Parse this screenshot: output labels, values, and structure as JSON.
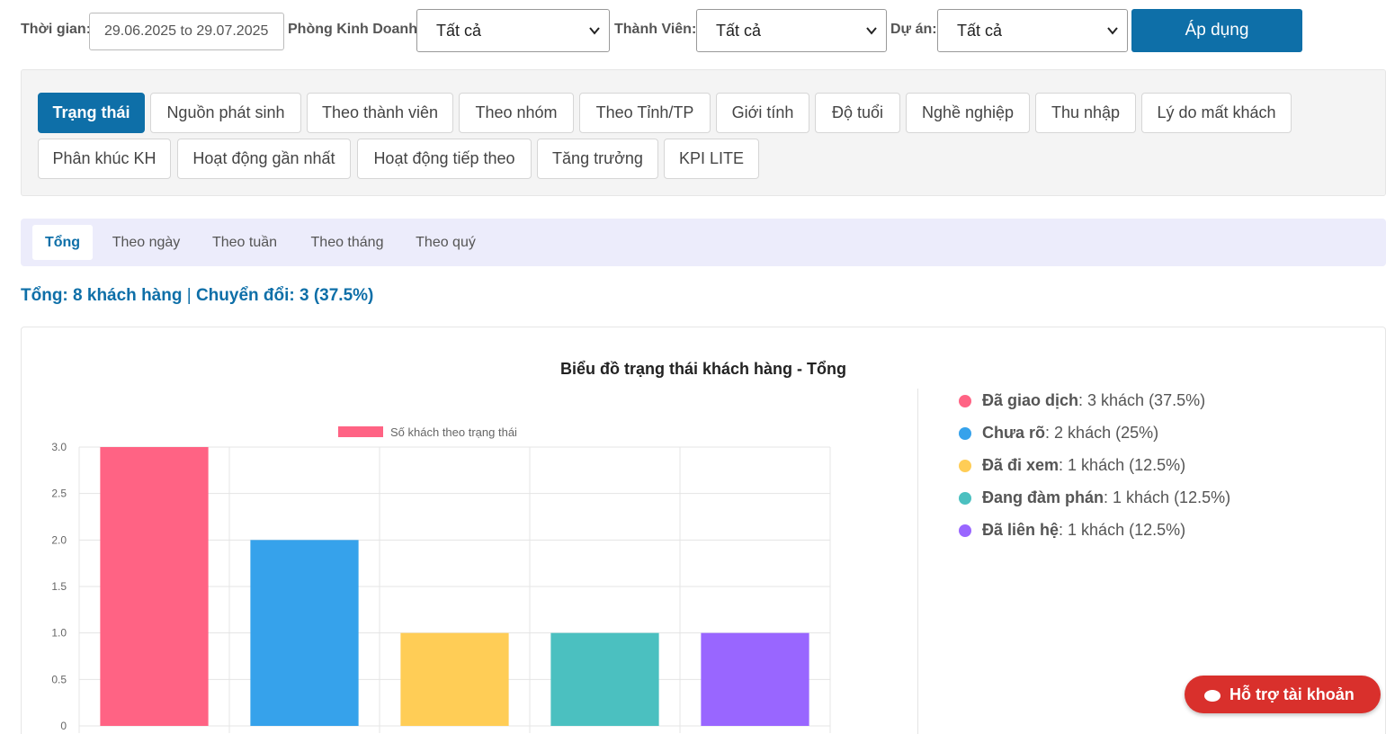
{
  "filters": {
    "time_label": "Thời gian:",
    "date_range": "29.06.2025 to 29.07.2025",
    "dept_label": "Phòng Kinh Doanh:",
    "dept_value": "Tất cả",
    "member_label": "Thành Viên:",
    "member_value": "Tất cả",
    "project_label": "Dự án:",
    "project_value": "Tất cả",
    "apply_label": "Áp dụng"
  },
  "tabs": [
    {
      "label": "Trạng thái",
      "active": true
    },
    {
      "label": "Nguồn phát sinh"
    },
    {
      "label": "Theo thành viên"
    },
    {
      "label": "Theo nhóm"
    },
    {
      "label": "Theo Tỉnh/TP"
    },
    {
      "label": "Giới tính"
    },
    {
      "label": "Độ tuổi"
    },
    {
      "label": "Nghề nghiệp"
    },
    {
      "label": "Thu nhập"
    },
    {
      "label": "Lý do mất khách"
    },
    {
      "label": "Phân khúc KH"
    },
    {
      "label": "Hoạt động gần nhất"
    },
    {
      "label": "Hoạt động tiếp theo"
    },
    {
      "label": "Tăng trưởng"
    },
    {
      "label": "KPI LITE"
    }
  ],
  "subtabs": [
    {
      "label": "Tổng",
      "active": true
    },
    {
      "label": "Theo ngày"
    },
    {
      "label": "Theo tuần"
    },
    {
      "label": "Theo tháng"
    },
    {
      "label": "Theo quý"
    }
  ],
  "summary": {
    "total": "Tổng: 8 khách hàng",
    "separator": "|",
    "conversion": "Chuyển đổi: 3 (37.5%)"
  },
  "chart_data": {
    "type": "bar",
    "title": "Biểu đồ trạng thái khách hàng - Tổng",
    "legend_label": "Số khách theo trạng thái",
    "categories": [
      "Đã giao dịch",
      "Chưa rõ",
      "Đã đi xem",
      "Đang đàm phán",
      "Đã liên hệ"
    ],
    "values": [
      3,
      2,
      1,
      1,
      1
    ],
    "colors": [
      "#ff6384",
      "#36a2eb",
      "#ffcd56",
      "#4bc0c0",
      "#9966ff"
    ],
    "ylim": [
      0,
      3
    ],
    "yticks": [
      "3.0",
      "2.5",
      "2.0",
      "1.5",
      "1.0",
      "0.5",
      "0"
    ],
    "grid": true,
    "legend_position": "top"
  },
  "status_legend": [
    {
      "name": "Đã giao dịch",
      "detail": ": 3 khách (37.5%)",
      "color": "#ff6384"
    },
    {
      "name": "Chưa rõ",
      "detail": ": 2 khách (25%)",
      "color": "#36a2eb"
    },
    {
      "name": "Đã đi xem",
      "detail": ": 1 khách (12.5%)",
      "color": "#ffcd56"
    },
    {
      "name": "Đang đàm phán",
      "detail": ": 1 khách (12.5%)",
      "color": "#4bc0c0"
    },
    {
      "name": "Đã liên hệ",
      "detail": ": 1 khách (12.5%)",
      "color": "#9966ff"
    }
  ],
  "support_button": {
    "label": "Hỗ trợ tài khoản",
    "icon": "chat-bubble-icon",
    "color": "#d9302c"
  }
}
